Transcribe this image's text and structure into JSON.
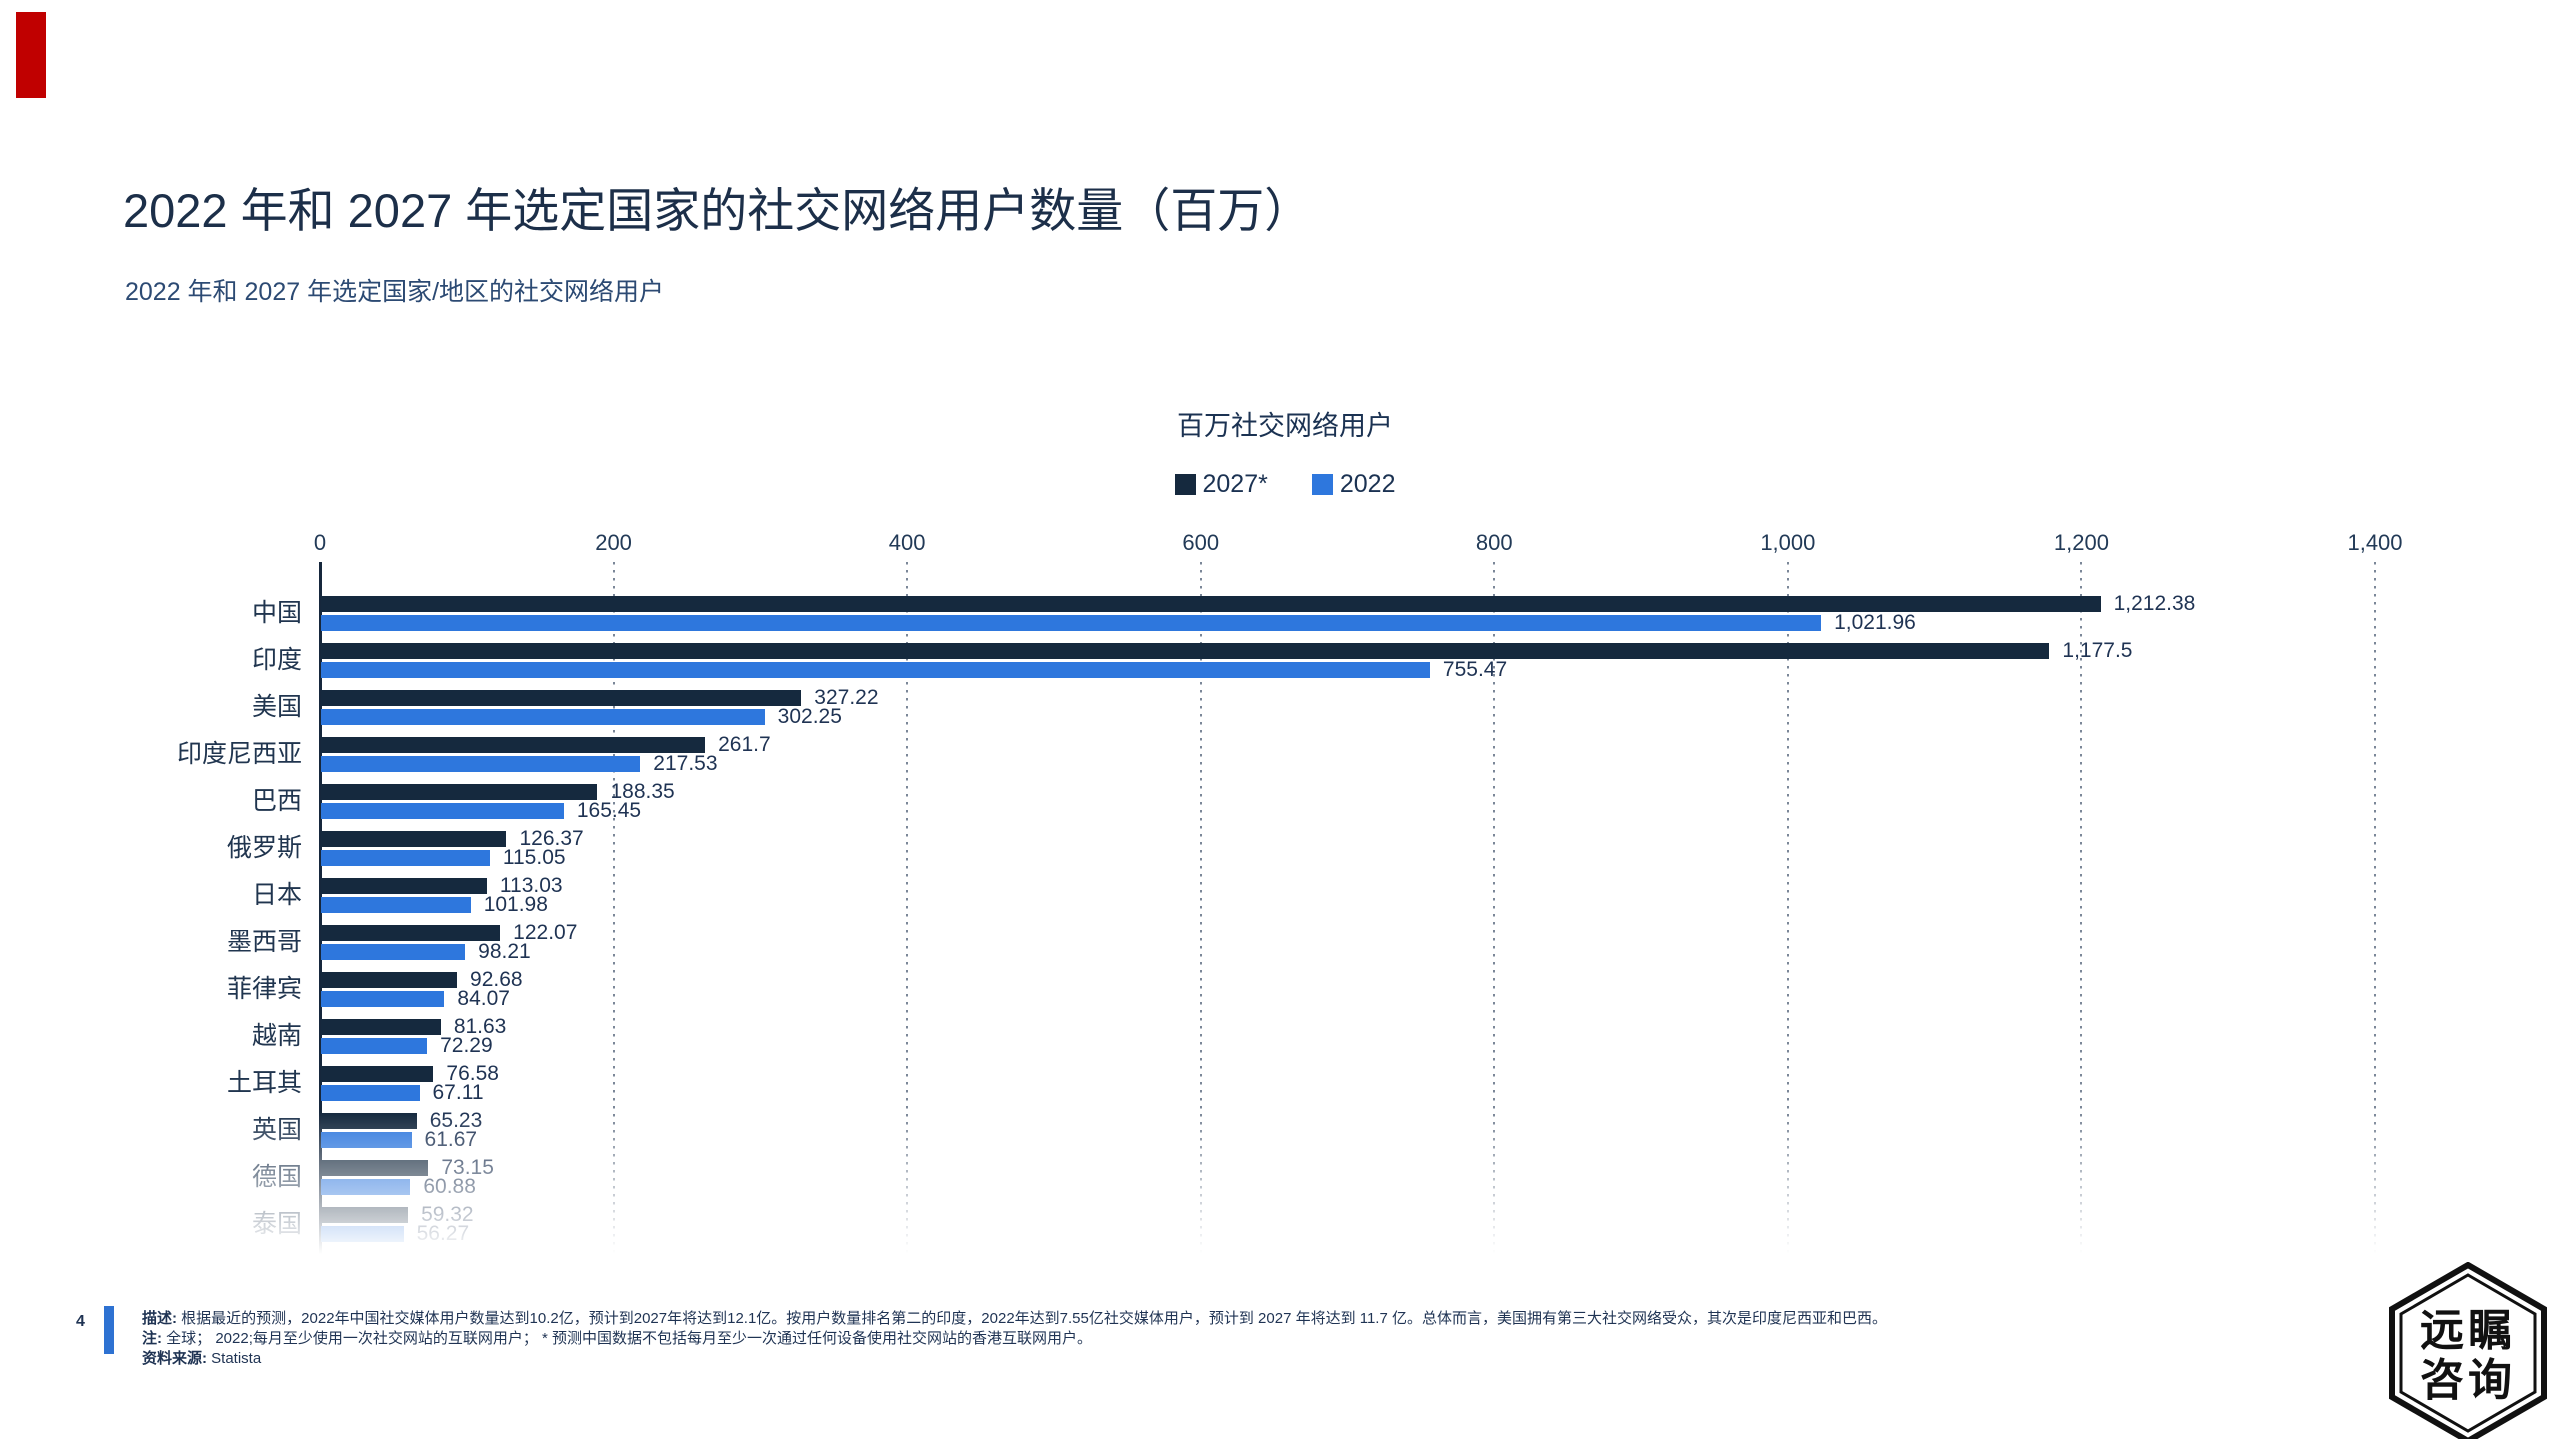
{
  "header": {
    "title": "2022 年和 2027 年选定国家的社交网络用户数量（百万）",
    "subtitle": "2022 年和 2027 年选定国家/地区的社交网络用户"
  },
  "chart_data": {
    "type": "bar",
    "orientation": "horizontal",
    "title": "百万社交网络用户",
    "xlabel": "",
    "ylabel": "",
    "xlim": [
      0,
      1400
    ],
    "x_ticks": [
      "0",
      "200",
      "400",
      "600",
      "800",
      "1,000",
      "1,200",
      "1,400"
    ],
    "grid": "vertical-dotted",
    "legend_position": "top-center",
    "categories": [
      "中国",
      "印度",
      "美国",
      "印度尼西亚",
      "巴西",
      "俄罗斯",
      "日本",
      "墨西哥",
      "菲律宾",
      "越南",
      "土耳其",
      "英国",
      "德国",
      "泰国"
    ],
    "series": [
      {
        "name": "2027*",
        "color": "#15293e",
        "values": [
          1212.38,
          1177.5,
          327.22,
          261.7,
          188.35,
          126.37,
          113.03,
          122.07,
          92.68,
          81.63,
          76.58,
          65.23,
          73.15,
          59.32
        ],
        "labels": [
          "1,212.38",
          "1,177.5",
          "327.22",
          "261.7",
          "188.35",
          "126.37",
          "113.03",
          "122.07",
          "92.68",
          "81.63",
          "76.58",
          "65.23",
          "73.15",
          "59.32"
        ]
      },
      {
        "name": "2022",
        "color": "#2e77dd",
        "values": [
          1021.96,
          755.47,
          302.25,
          217.53,
          165.45,
          115.05,
          101.98,
          98.21,
          84.07,
          72.29,
          67.11,
          61.67,
          60.88,
          56.27
        ],
        "labels": [
          "1,021.96",
          "755.47",
          "302.25",
          "217.53",
          "165.45",
          "115.05",
          "101.98",
          "98.21",
          "84.07",
          "72.29",
          "67.11",
          "61.67",
          "60.88",
          "56.27"
        ]
      }
    ],
    "faded_bottom_categories": [
      "德国",
      "泰国"
    ]
  },
  "footer": {
    "page_number": "4",
    "description_label": "描述:",
    "description": "根据最近的预测，2022年中国社交媒体用户数量达到10.2亿，预计到2027年将达到12.1亿。按用户数量排名第二的印度，2022年达到7.55亿社交媒体用户，预计到 2027 年将达到 11.7 亿。总体而言，美国拥有第三大社交网络受众，其次是印度尼西亚和巴西。",
    "note_label": "注:",
    "note": "全球； 2022;每月至少使用一次社交网站的互联网用户； * 预测中国数据不包括每月至少一次通过任何设备使用社交网站的香港互联网用户。",
    "source_label": "资料来源:",
    "source": "Statista"
  },
  "logo": {
    "line1": "远瞩",
    "line2": "咨询"
  },
  "colors": {
    "accent_red": "#c00000",
    "title_navy": "#1c2f49",
    "bar_2027": "#15293e",
    "bar_2022": "#2e77dd",
    "footer_bar_blue": "#2e72d2"
  }
}
